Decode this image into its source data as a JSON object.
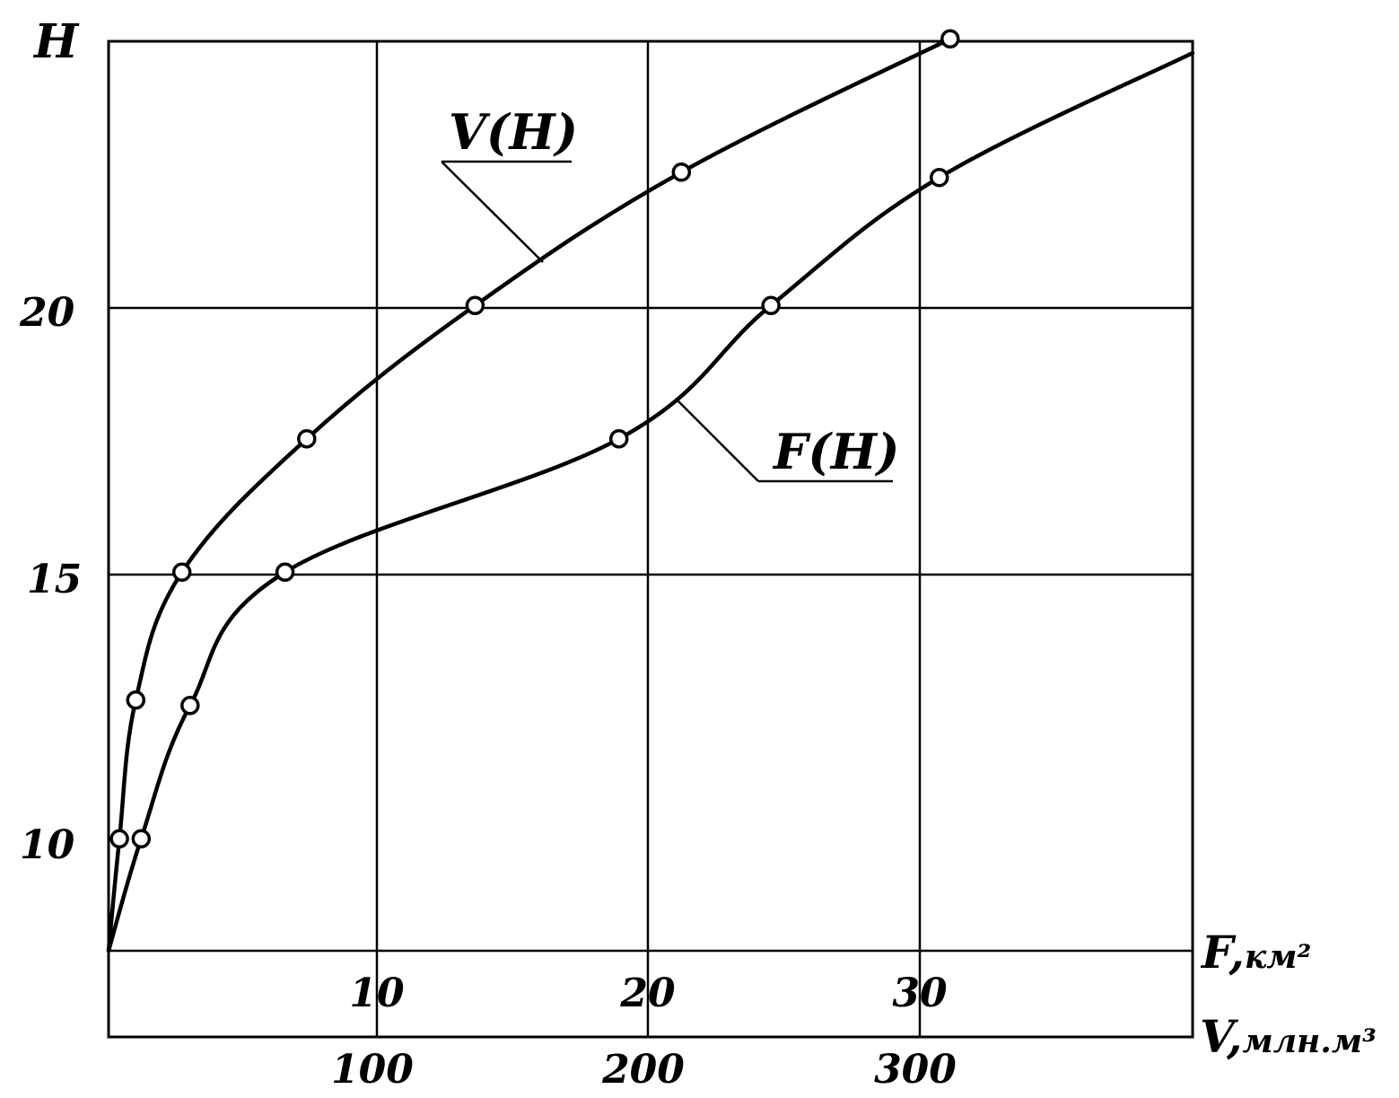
{
  "chart_data": {
    "type": "line",
    "y_axis": {
      "label": "H",
      "ticks": [
        "10",
        "15",
        "20"
      ],
      "range": [
        7.9,
        25
      ]
    },
    "x_axis_F": {
      "label": "F,",
      "unit": "км²",
      "ticks": [
        "10",
        "20",
        "30"
      ],
      "range": [
        0,
        40
      ]
    },
    "x_axis_V": {
      "label": "V,",
      "unit": "млн.м³",
      "ticks": [
        "100",
        "200",
        "300"
      ],
      "range": [
        0,
        400
      ]
    },
    "grid": true,
    "series": [
      {
        "name": "V(H)",
        "axis": "V",
        "x": [
          0,
          4,
          10,
          27,
          73,
          135,
          211,
          310
        ],
        "y": [
          7.9,
          10.0,
          12.6,
          15.0,
          17.5,
          20.0,
          22.5,
          25.0
        ]
      },
      {
        "name": "F(H)",
        "axis": "F",
        "x": [
          0,
          1.2,
          3.0,
          6.5,
          18.8,
          24.4,
          30.6
        ],
        "y": [
          7.9,
          10.0,
          12.5,
          15.0,
          17.5,
          20.0,
          22.4
        ]
      }
    ]
  }
}
